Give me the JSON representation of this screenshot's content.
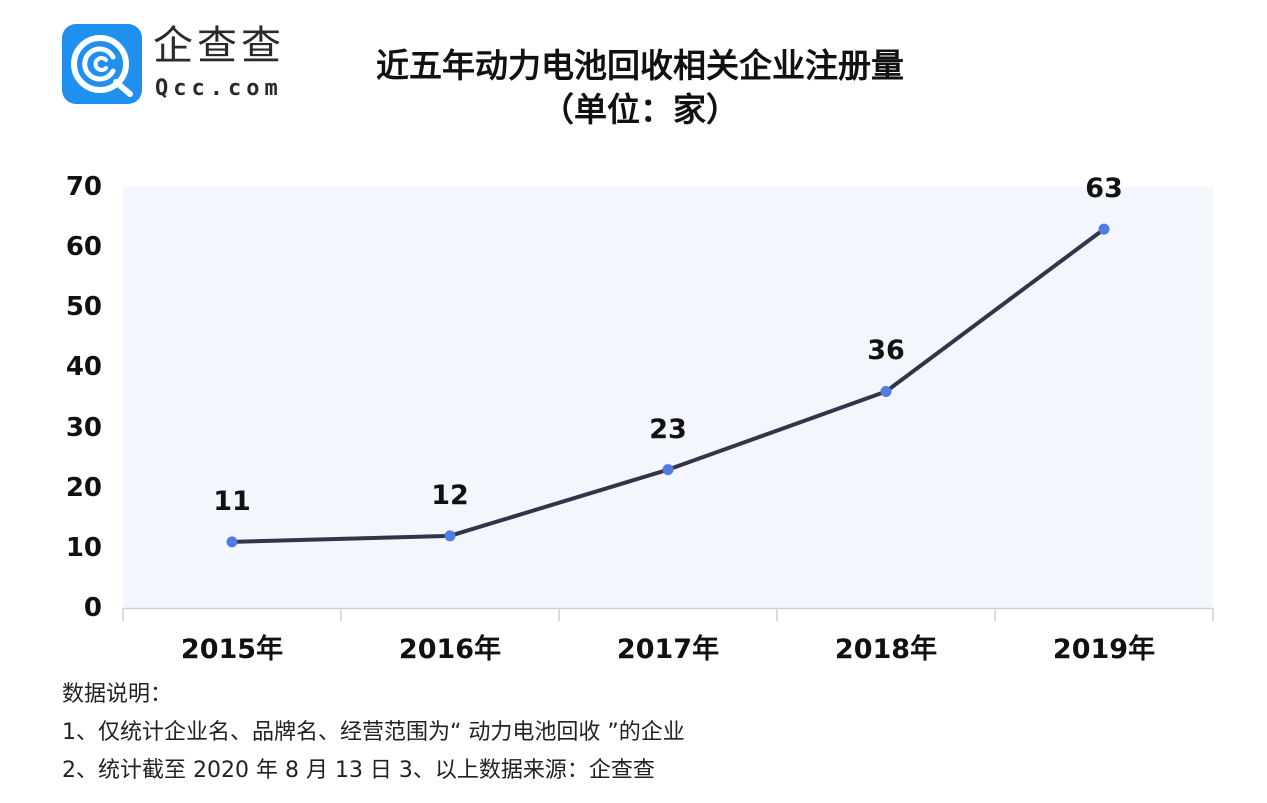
{
  "brand": {
    "name_cn": "企查查",
    "name_en": "Qcc.com",
    "logo_color": "#1f8ff0"
  },
  "title": {
    "main": "近五年动力电池回收相关企业注册量",
    "unit": "（单位：家）"
  },
  "chart_data": {
    "type": "line",
    "title": "近五年动力电池回收相关企业注册量（单位：家）",
    "xlabel": "",
    "ylabel": "",
    "categories": [
      "2015年",
      "2016年",
      "2017年",
      "2018年",
      "2019年"
    ],
    "values": [
      11,
      12,
      23,
      36,
      63
    ],
    "data_labels": [
      "11",
      "12",
      "23",
      "36",
      "63"
    ],
    "y_ticks": [
      "0",
      "10",
      "20",
      "30",
      "40",
      "50",
      "60",
      "70"
    ],
    "ylim": [
      0,
      70
    ],
    "grid": false,
    "legend": null,
    "colors": {
      "line": "#35334a",
      "marker": "#4f7ee0",
      "plot_background": "#f4f6fd",
      "axis": "#d0d0d0"
    }
  },
  "notes": {
    "heading": "数据说明：",
    "line1": "1、仅统计企业名、品牌名、经营范围为“ 动力电池回收 ”的企业",
    "line2": "2、统计截至 2020 年 8 月 13 日  3、以上数据来源：企查查"
  }
}
